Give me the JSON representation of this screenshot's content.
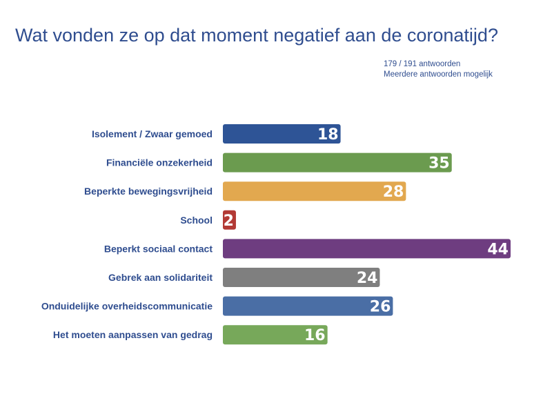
{
  "chart_data": {
    "type": "bar",
    "orientation": "horizontal",
    "title": "Wat vonden ze op dat moment negatief aan de coronatijd?",
    "subtitle_lines": [
      "179 / 191 antwoorden",
      "Meerdere antwoorden mogelijk"
    ],
    "categories": [
      "Isolement / Zwaar gemoed",
      "Financiële onzekerheid",
      "Beperkte bewegingsvrijheid",
      "School",
      "Beperkt sociaal contact",
      "Gebrek aan solidariteit",
      "Onduidelijke overheidscommunicatie",
      "Het moeten aanpassen van gedrag"
    ],
    "values": [
      18,
      35,
      28,
      2,
      44,
      24,
      26,
      16
    ],
    "colors": [
      "#2e5496",
      "#6b9b4f",
      "#e2a84f",
      "#b33a35",
      "#6e3d80",
      "#7f7f7f",
      "#4a6ea5",
      "#77a85a"
    ],
    "xlim": [
      0,
      44
    ],
    "grid": false,
    "legend": "none"
  }
}
